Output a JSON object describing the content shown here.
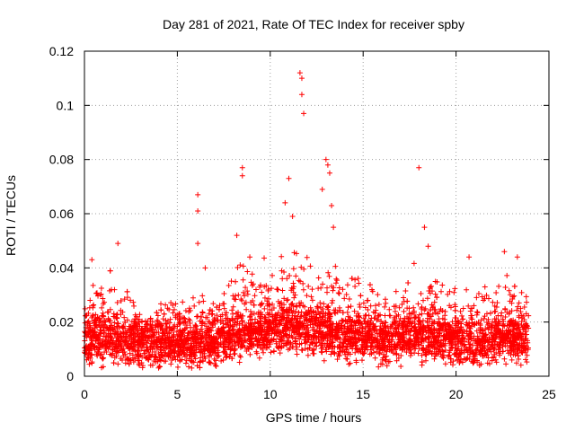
{
  "chart_data": {
    "type": "scatter",
    "title": "Day 281 of 2021, Rate Of TEC Index for receiver spby",
    "xlabel": "GPS time / hours",
    "ylabel": "ROTI / TECUs",
    "xlim": [
      0,
      25
    ],
    "ylim": [
      0,
      0.12
    ],
    "x_ticks": [
      0,
      5,
      10,
      15,
      20,
      25
    ],
    "x_tick_labels": [
      "0",
      "5",
      "10",
      "15",
      "20",
      "25"
    ],
    "y_ticks": [
      0,
      0.02,
      0.04,
      0.06,
      0.08,
      0.1,
      0.12
    ],
    "y_tick_labels": [
      "0",
      "0.02",
      "0.04",
      "0.06",
      "0.08",
      "0.1",
      "0.12"
    ],
    "grid": true,
    "marker": "+",
    "color": "#ff0000",
    "x_range_of_data_hours": [
      0,
      23.9
    ],
    "typical_band": [
      0.005,
      0.03
    ],
    "series": [
      {
        "name": "ROTI",
        "notable_points": [
          {
            "x": 0.4,
            "y": 0.043
          },
          {
            "x": 1.8,
            "y": 0.049
          },
          {
            "x": 6.1,
            "y": 0.067
          },
          {
            "x": 6.1,
            "y": 0.061
          },
          {
            "x": 6.1,
            "y": 0.049
          },
          {
            "x": 6.5,
            "y": 0.04
          },
          {
            "x": 8.2,
            "y": 0.052
          },
          {
            "x": 8.5,
            "y": 0.077
          },
          {
            "x": 8.5,
            "y": 0.074
          },
          {
            "x": 8.9,
            "y": 0.044
          },
          {
            "x": 10.8,
            "y": 0.064
          },
          {
            "x": 11.0,
            "y": 0.073
          },
          {
            "x": 11.2,
            "y": 0.059
          },
          {
            "x": 11.6,
            "y": 0.112
          },
          {
            "x": 11.7,
            "y": 0.11
          },
          {
            "x": 11.7,
            "y": 0.104
          },
          {
            "x": 11.8,
            "y": 0.097
          },
          {
            "x": 12.8,
            "y": 0.069
          },
          {
            "x": 13.0,
            "y": 0.08
          },
          {
            "x": 13.1,
            "y": 0.078
          },
          {
            "x": 13.2,
            "y": 0.075
          },
          {
            "x": 13.3,
            "y": 0.063
          },
          {
            "x": 13.4,
            "y": 0.055
          },
          {
            "x": 18.0,
            "y": 0.077
          },
          {
            "x": 18.3,
            "y": 0.055
          },
          {
            "x": 18.5,
            "y": 0.048
          },
          {
            "x": 20.7,
            "y": 0.044
          },
          {
            "x": 22.6,
            "y": 0.046
          },
          {
            "x": 23.3,
            "y": 0.044
          }
        ],
        "density_profile": [
          {
            "t": 0.0,
            "base": 0.013,
            "peak": 0.03
          },
          {
            "t": 1.0,
            "base": 0.014,
            "peak": 0.04
          },
          {
            "t": 2.0,
            "base": 0.013,
            "peak": 0.035
          },
          {
            "t": 3.0,
            "base": 0.011,
            "peak": 0.025
          },
          {
            "t": 4.0,
            "base": 0.011,
            "peak": 0.028
          },
          {
            "t": 5.0,
            "base": 0.012,
            "peak": 0.03
          },
          {
            "t": 6.0,
            "base": 0.012,
            "peak": 0.032
          },
          {
            "t": 7.0,
            "base": 0.012,
            "peak": 0.028
          },
          {
            "t": 8.0,
            "base": 0.015,
            "peak": 0.042
          },
          {
            "t": 9.0,
            "base": 0.016,
            "peak": 0.04
          },
          {
            "t": 10.0,
            "base": 0.017,
            "peak": 0.042
          },
          {
            "t": 11.0,
            "base": 0.018,
            "peak": 0.05
          },
          {
            "t": 12.0,
            "base": 0.017,
            "peak": 0.045
          },
          {
            "t": 13.0,
            "base": 0.016,
            "peak": 0.045
          },
          {
            "t": 14.0,
            "base": 0.014,
            "peak": 0.035
          },
          {
            "t": 15.0,
            "base": 0.015,
            "peak": 0.04
          },
          {
            "t": 16.0,
            "base": 0.013,
            "peak": 0.03
          },
          {
            "t": 17.0,
            "base": 0.014,
            "peak": 0.032
          },
          {
            "t": 18.0,
            "base": 0.015,
            "peak": 0.042
          },
          {
            "t": 19.0,
            "base": 0.014,
            "peak": 0.035
          },
          {
            "t": 20.0,
            "base": 0.013,
            "peak": 0.034
          },
          {
            "t": 21.0,
            "base": 0.012,
            "peak": 0.03
          },
          {
            "t": 22.0,
            "base": 0.013,
            "peak": 0.035
          },
          {
            "t": 23.0,
            "base": 0.014,
            "peak": 0.038
          },
          {
            "t": 23.9,
            "base": 0.013,
            "peak": 0.03
          }
        ]
      }
    ]
  }
}
